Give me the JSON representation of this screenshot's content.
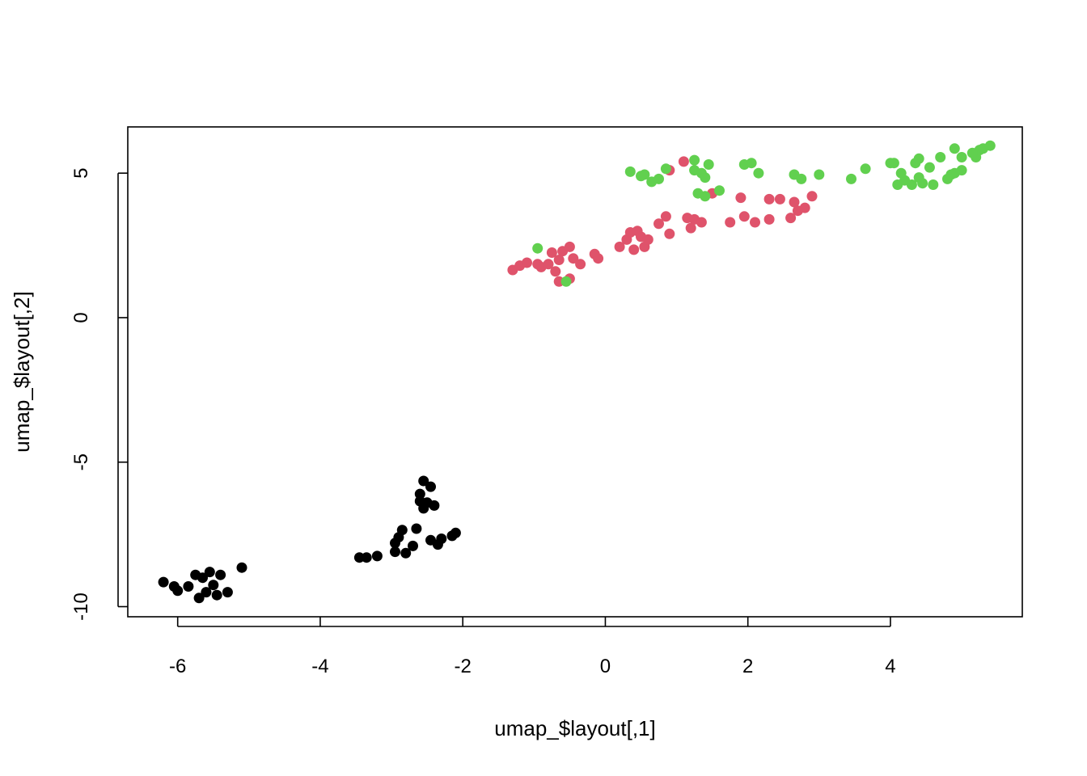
{
  "chart_data": {
    "type": "scatter",
    "title": "",
    "xlabel": "umap_$layout[,1]",
    "ylabel": "umap_$layout[,2]",
    "xlim": [
      -6.7,
      5.85
    ],
    "ylim": [
      -10.35,
      6.6
    ],
    "xticks": [
      "-6",
      "-4",
      "-2",
      "0",
      "2",
      "4"
    ],
    "yticks": [
      "-10",
      "-5",
      "0",
      "5"
    ],
    "grid": false,
    "legend": "none",
    "series": [
      {
        "color": "#000000",
        "points": [
          [
            -6.2,
            -9.15
          ],
          [
            -6.05,
            -9.3
          ],
          [
            -6.0,
            -9.45
          ],
          [
            -5.85,
            -9.3
          ],
          [
            -5.75,
            -8.9
          ],
          [
            -5.7,
            -9.7
          ],
          [
            -5.65,
            -9.0
          ],
          [
            -5.6,
            -9.5
          ],
          [
            -5.55,
            -8.8
          ],
          [
            -5.5,
            -9.25
          ],
          [
            -5.45,
            -9.6
          ],
          [
            -5.4,
            -8.9
          ],
          [
            -5.3,
            -9.5
          ],
          [
            -5.1,
            -8.65
          ],
          [
            -3.45,
            -8.3
          ],
          [
            -3.35,
            -8.3
          ],
          [
            -3.2,
            -8.25
          ],
          [
            -2.95,
            -8.1
          ],
          [
            -2.9,
            -7.6
          ],
          [
            -2.85,
            -7.35
          ],
          [
            -2.8,
            -8.15
          ],
          [
            -2.7,
            -7.9
          ],
          [
            -2.65,
            -7.3
          ],
          [
            -2.6,
            -6.35
          ],
          [
            -2.55,
            -6.6
          ],
          [
            -2.55,
            -5.65
          ],
          [
            -2.5,
            -6.4
          ],
          [
            -2.45,
            -5.85
          ],
          [
            -2.45,
            -7.7
          ],
          [
            -2.4,
            -6.5
          ],
          [
            -2.35,
            -7.85
          ],
          [
            -2.3,
            -7.65
          ],
          [
            -2.15,
            -7.55
          ],
          [
            -2.1,
            -7.45
          ],
          [
            -2.6,
            -6.1
          ],
          [
            -2.95,
            -7.8
          ]
        ]
      },
      {
        "color": "#df536b",
        "points": [
          [
            -1.3,
            1.65
          ],
          [
            -1.2,
            1.8
          ],
          [
            -1.1,
            1.9
          ],
          [
            -0.95,
            1.85
          ],
          [
            -0.9,
            1.75
          ],
          [
            -0.8,
            1.85
          ],
          [
            -0.75,
            2.25
          ],
          [
            -0.7,
            1.6
          ],
          [
            -0.65,
            2.0
          ],
          [
            -0.65,
            1.25
          ],
          [
            -0.6,
            2.3
          ],
          [
            -0.5,
            1.35
          ],
          [
            -0.5,
            2.45
          ],
          [
            -0.45,
            2.05
          ],
          [
            -0.35,
            1.85
          ],
          [
            -0.15,
            2.2
          ],
          [
            -0.1,
            2.05
          ],
          [
            0.2,
            2.45
          ],
          [
            0.3,
            2.7
          ],
          [
            0.35,
            2.95
          ],
          [
            0.4,
            2.35
          ],
          [
            0.45,
            3.0
          ],
          [
            0.5,
            2.8
          ],
          [
            0.55,
            2.45
          ],
          [
            0.6,
            2.7
          ],
          [
            0.75,
            3.25
          ],
          [
            0.85,
            3.5
          ],
          [
            0.9,
            2.9
          ],
          [
            0.9,
            5.1
          ],
          [
            1.1,
            5.4
          ],
          [
            1.15,
            3.45
          ],
          [
            1.2,
            3.1
          ],
          [
            1.25,
            3.4
          ],
          [
            1.35,
            3.3
          ],
          [
            1.5,
            4.3
          ],
          [
            1.75,
            3.3
          ],
          [
            1.9,
            4.15
          ],
          [
            1.95,
            3.5
          ],
          [
            2.1,
            3.3
          ],
          [
            2.3,
            3.4
          ],
          [
            2.3,
            4.1
          ],
          [
            2.45,
            4.1
          ],
          [
            2.6,
            3.45
          ],
          [
            2.65,
            4.0
          ],
          [
            2.7,
            3.7
          ],
          [
            2.8,
            3.8
          ],
          [
            2.9,
            4.2
          ]
        ]
      },
      {
        "color": "#61d04f",
        "points": [
          [
            -0.95,
            2.4
          ],
          [
            -0.55,
            1.25
          ],
          [
            0.35,
            5.05
          ],
          [
            0.5,
            4.9
          ],
          [
            0.55,
            4.95
          ],
          [
            0.65,
            4.7
          ],
          [
            0.75,
            4.8
          ],
          [
            0.85,
            5.15
          ],
          [
            1.25,
            5.45
          ],
          [
            1.25,
            5.1
          ],
          [
            1.3,
            4.3
          ],
          [
            1.35,
            5.0
          ],
          [
            1.4,
            4.85
          ],
          [
            1.4,
            4.2
          ],
          [
            1.45,
            5.3
          ],
          [
            1.6,
            4.4
          ],
          [
            1.95,
            5.3
          ],
          [
            2.05,
            5.35
          ],
          [
            2.15,
            5.0
          ],
          [
            2.65,
            4.95
          ],
          [
            2.75,
            4.8
          ],
          [
            3.0,
            4.95
          ],
          [
            3.45,
            4.8
          ],
          [
            3.65,
            5.15
          ],
          [
            4.0,
            5.35
          ],
          [
            4.05,
            5.35
          ],
          [
            4.1,
            4.6
          ],
          [
            4.15,
            5.0
          ],
          [
            4.2,
            4.75
          ],
          [
            4.3,
            4.6
          ],
          [
            4.35,
            5.35
          ],
          [
            4.4,
            4.85
          ],
          [
            4.4,
            5.5
          ],
          [
            4.45,
            4.65
          ],
          [
            4.55,
            5.2
          ],
          [
            4.6,
            4.6
          ],
          [
            4.7,
            5.55
          ],
          [
            4.8,
            4.8
          ],
          [
            4.9,
            5.0
          ],
          [
            4.9,
            5.85
          ],
          [
            5.0,
            5.1
          ],
          [
            5.0,
            5.55
          ],
          [
            5.2,
            5.55
          ],
          [
            5.25,
            5.8
          ],
          [
            5.3,
            5.85
          ],
          [
            5.4,
            5.95
          ],
          [
            4.85,
            4.95
          ],
          [
            5.15,
            5.7
          ]
        ]
      }
    ]
  }
}
